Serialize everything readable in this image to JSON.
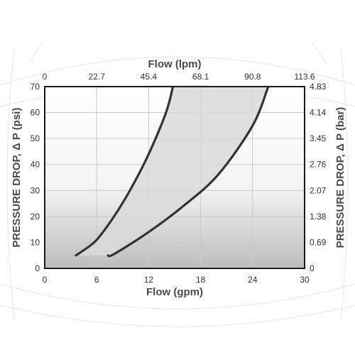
{
  "chart_data": {
    "type": "line",
    "title": "",
    "xlabel": "Flow (gpm)",
    "x2label": "Flow (lpm)",
    "ylabel": "PRESSURE DROP, Δ P (psi)",
    "y2label": "PRESSURE DROP, Δ P (bar)",
    "xlim": [
      0,
      30
    ],
    "ylim": [
      0,
      70
    ],
    "x_ticks": [
      "0",
      "6",
      "12",
      "18",
      "24",
      "30"
    ],
    "x_ticks_values": [
      0,
      6,
      12,
      18,
      24,
      30
    ],
    "x2_ticks": [
      "0",
      "22.7",
      "45.4",
      "68.1",
      "90.8",
      "113.6"
    ],
    "y_ticks": [
      "0",
      "10",
      "20",
      "30",
      "40",
      "50",
      "60",
      "70"
    ],
    "y_ticks_values": [
      0,
      10,
      20,
      30,
      40,
      50,
      60,
      70
    ],
    "y2_ticks": [
      "0",
      "0.69",
      "1.38",
      "2.07",
      "2.76",
      "3.45",
      "4.14",
      "4.83"
    ],
    "grid": true,
    "shaded_band_between_series": true,
    "series": [
      {
        "x": [
          3.6,
          4.5,
          6.0,
          8.0,
          10.0,
          12.0,
          14.0,
          14.8
        ],
        "y": [
          5,
          7,
          11,
          20,
          31,
          44,
          60,
          70
        ]
      },
      {
        "x": [
          7.3,
          8.0,
          12.0,
          16.0,
          20.0,
          24.0,
          25.8
        ],
        "y": [
          5,
          5.5,
          14,
          24,
          36,
          55,
          70
        ]
      }
    ],
    "colors": {
      "line": "#333333",
      "band": "#dcdcdc",
      "grid": "#c8c8c8",
      "background_top": "#ffffff",
      "background_bottom": "#c2c2c2"
    }
  }
}
